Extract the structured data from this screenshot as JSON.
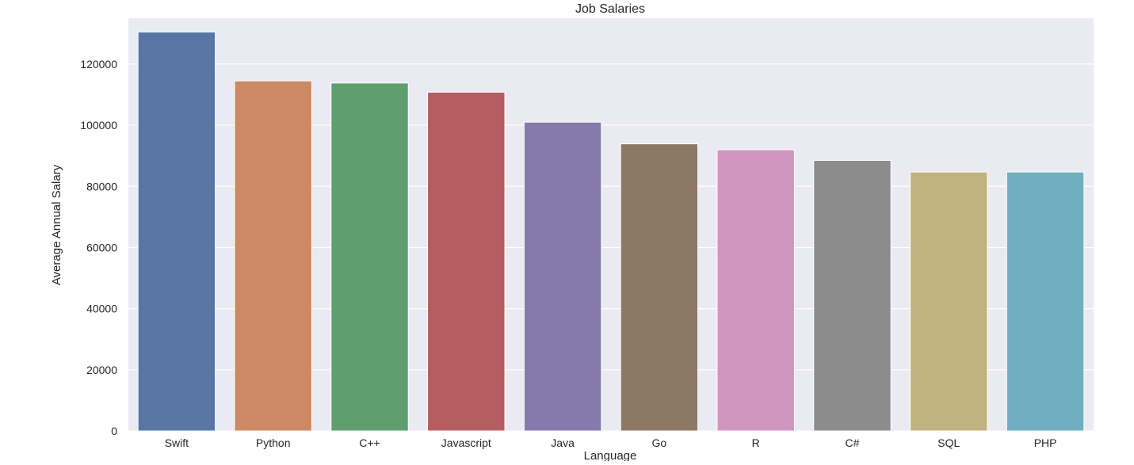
{
  "chart_data": {
    "type": "bar",
    "title": "Job Salaries",
    "xlabel": "Language",
    "ylabel": "Average Annual Salary",
    "categories": [
      "Swift",
      "Python",
      "C++",
      "Javascript",
      "Java",
      "Go",
      "R",
      "C#",
      "SQL",
      "PHP"
    ],
    "values": [
      130500,
      114500,
      113800,
      110800,
      101000,
      93900,
      92000,
      88500,
      84700,
      84700
    ],
    "colors": [
      "#5875a4",
      "#cc8963",
      "#5f9e6e",
      "#b55d60",
      "#857aab",
      "#8d7866",
      "#d095bf",
      "#8c8c8c",
      "#c1b37f",
      "#71aec0"
    ],
    "ylim": [
      0,
      135000
    ],
    "yticks": [
      0,
      20000,
      40000,
      60000,
      80000,
      100000,
      120000
    ],
    "ytick_labels": [
      "0",
      "20000",
      "40000",
      "60000",
      "80000",
      "100000",
      "120000"
    ],
    "grid": true,
    "background": "#eaeaf2"
  }
}
